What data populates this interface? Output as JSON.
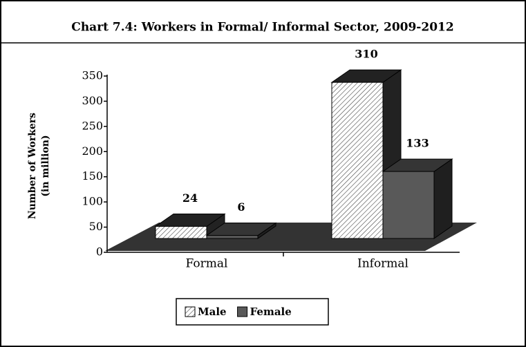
{
  "chart_data": {
    "type": "bar3d",
    "title": "Chart 7.4: Workers in Formal/ Informal Sector, 2009-2012",
    "y_label": [
      "Number of Workers",
      "(in million)"
    ],
    "categories": [
      "Formal",
      "Informal"
    ],
    "series": [
      {
        "name": "Male",
        "color": "#ffffff",
        "hatch": true,
        "values": [
          24,
          310
        ]
      },
      {
        "name": "Female",
        "color": "#595959",
        "hatch": false,
        "values": [
          6,
          133
        ]
      }
    ],
    "ylim": [
      0,
      350
    ],
    "yticks": [
      0,
      50,
      100,
      150,
      200,
      250,
      300,
      350
    ],
    "grid": false
  }
}
